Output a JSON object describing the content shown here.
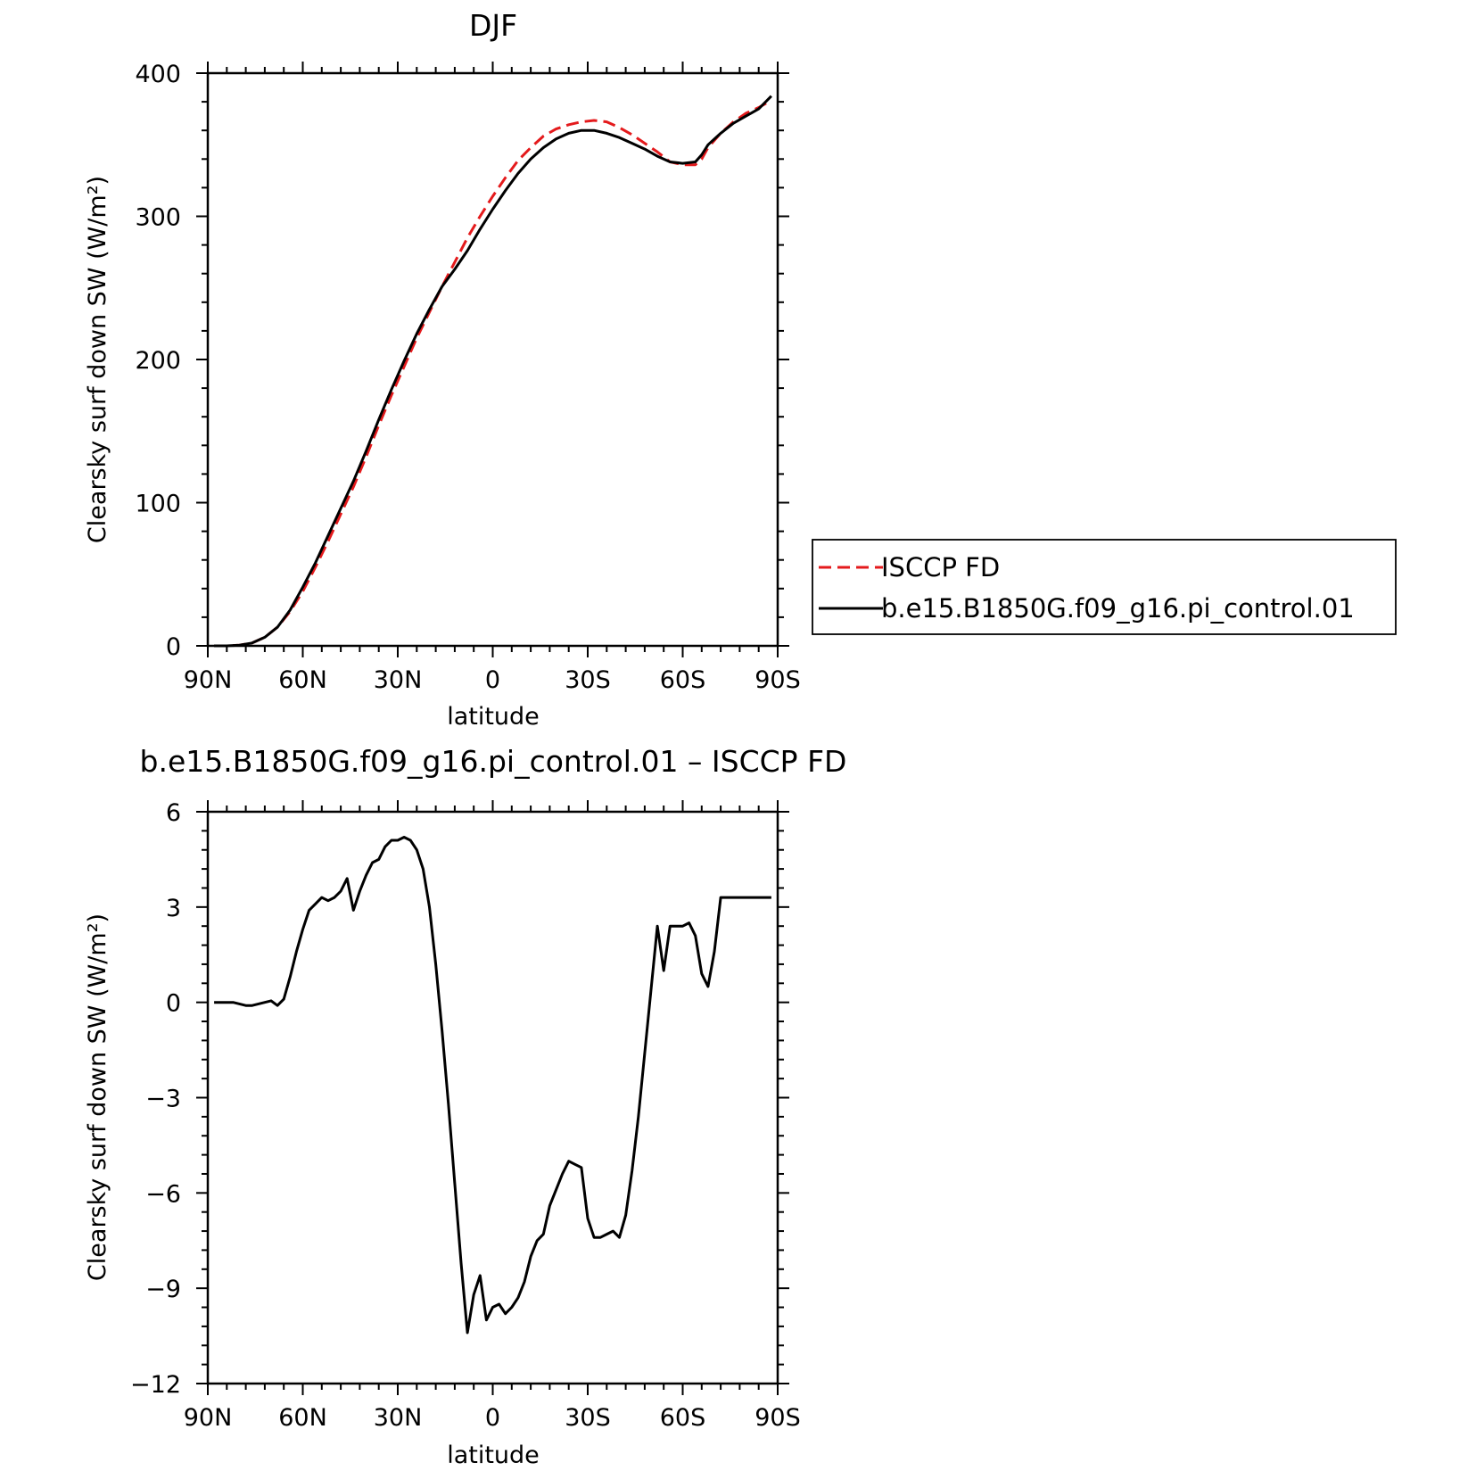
{
  "chart_data": [
    {
      "type": "line",
      "title": "DJF",
      "xlabel": "latitude",
      "ylabel": "Clearsky surf down SW (W/m²)",
      "xlim": [
        -90,
        90
      ],
      "ylim": [
        0,
        400
      ],
      "xticks": [
        -90,
        -60,
        -30,
        0,
        30,
        60,
        90
      ],
      "xtick_labels": [
        "90N",
        "60N",
        "30N",
        "0",
        "30S",
        "60S",
        "90S"
      ],
      "yticks": [
        0,
        100,
        200,
        300,
        400
      ],
      "ytick_labels": [
        "0",
        "100",
        "200",
        "300",
        "400"
      ],
      "legend": {
        "placement": "right",
        "entries": [
          "ISCCP FD",
          "b.e15.B1850G.f09_g16.pi_control.01"
        ]
      },
      "series": [
        {
          "name": "ISCCP FD",
          "color": "#e41a1c",
          "style": "dashed",
          "x": [
            -88,
            -84,
            -80,
            -76,
            -72,
            -68,
            -64,
            -60,
            -56,
            -52,
            -48,
            -44,
            -40,
            -36,
            -32,
            -28,
            -24,
            -20,
            -16,
            -12,
            -8,
            -4,
            0,
            4,
            8,
            12,
            16,
            20,
            24,
            28,
            32,
            36,
            40,
            44,
            48,
            52,
            56,
            60,
            64,
            66,
            68,
            72,
            76,
            80,
            84,
            88
          ],
          "y": [
            0,
            0,
            0.5,
            2,
            6,
            13,
            24,
            38,
            55,
            73,
            92,
            111,
            132,
            154,
            175,
            195,
            215,
            233,
            251,
            268,
            285,
            300,
            314,
            327,
            339,
            348,
            356,
            361,
            364,
            366,
            367,
            366,
            362,
            357,
            351,
            345,
            338,
            336,
            336,
            340,
            348,
            358,
            366,
            372,
            376,
            381
          ]
        },
        {
          "name": "b.e15.B1850G.f09_g16.pi_control.01",
          "color": "#000000",
          "style": "solid",
          "x": [
            -88,
            -84,
            -80,
            -76,
            -72,
            -68,
            -64,
            -60,
            -56,
            -52,
            -48,
            -44,
            -40,
            -36,
            -32,
            -28,
            -24,
            -20,
            -16,
            -12,
            -8,
            -4,
            0,
            4,
            8,
            12,
            16,
            20,
            24,
            28,
            32,
            36,
            40,
            44,
            48,
            52,
            56,
            60,
            64,
            66,
            68,
            72,
            76,
            80,
            84,
            88
          ],
          "y": [
            0,
            0,
            0.5,
            2,
            6,
            13,
            25,
            41,
            58,
            77,
            96,
            115,
            136,
            158,
            179,
            199,
            218,
            235,
            251,
            263,
            276,
            291,
            305,
            318,
            330,
            340,
            348,
            354,
            358,
            360,
            360,
            358,
            355,
            351,
            347,
            342,
            338,
            337,
            338,
            343,
            350,
            358,
            365,
            370,
            375,
            384
          ]
        }
      ]
    },
    {
      "type": "line",
      "title": "b.e15.B1850G.f09_g16.pi_control.01 – ISCCP FD",
      "xlabel": "latitude",
      "ylabel": "Clearsky surf down SW (W/m²)",
      "xlim": [
        -90,
        90
      ],
      "ylim": [
        -12,
        6
      ],
      "xticks": [
        -90,
        -60,
        -30,
        0,
        30,
        60,
        90
      ],
      "xtick_labels": [
        "90N",
        "60N",
        "30N",
        "0",
        "30S",
        "60S",
        "90S"
      ],
      "yticks": [
        -12,
        -9,
        -6,
        -3,
        0,
        3,
        6
      ],
      "ytick_labels": [
        "−12",
        "−9",
        "−6",
        "−3",
        "0",
        "3",
        "6"
      ],
      "series": [
        {
          "color": "#000000",
          "style": "solid",
          "x": [
            -88,
            -86,
            -84,
            -82,
            -80,
            -78,
            -76,
            -74,
            -72,
            -70,
            -68,
            -66,
            -64,
            -62,
            -60,
            -58,
            -56,
            -54,
            -52,
            -50,
            -48,
            -46,
            -44,
            -42,
            -40,
            -38,
            -36,
            -34,
            -32,
            -30,
            -28,
            -26,
            -24,
            -22,
            -20,
            -18,
            -16,
            -14,
            -12,
            -10,
            -8,
            -6,
            -4,
            -2,
            0,
            2,
            4,
            6,
            8,
            10,
            12,
            14,
            16,
            18,
            20,
            22,
            24,
            26,
            28,
            30,
            32,
            34,
            36,
            38,
            40,
            42,
            44,
            46,
            48,
            50,
            52,
            54,
            56,
            58,
            60,
            62,
            64,
            66,
            68,
            70,
            72,
            74,
            76,
            78,
            80,
            82,
            84,
            86,
            88
          ],
          "y": [
            0,
            0,
            0,
            0,
            -0.05,
            -0.1,
            -0.1,
            -0.05,
            0,
            0.05,
            -0.1,
            0.1,
            0.8,
            1.6,
            2.3,
            2.9,
            3.1,
            3.3,
            3.2,
            3.3,
            3.5,
            3.9,
            2.9,
            3.5,
            4.0,
            4.4,
            4.5,
            4.9,
            5.1,
            5.1,
            5.2,
            5.1,
            4.8,
            4.2,
            3.0,
            1.2,
            -0.9,
            -3.2,
            -5.7,
            -8.2,
            -10.4,
            -9.2,
            -8.6,
            -10.0,
            -9.6,
            -9.5,
            -9.8,
            -9.6,
            -9.3,
            -8.8,
            -8.0,
            -7.5,
            -7.3,
            -6.4,
            -5.9,
            -5.4,
            -5.0,
            -5.1,
            -5.2,
            -6.8,
            -7.4,
            -7.4,
            -7.3,
            -7.2,
            -7.4,
            -6.7,
            -5.3,
            -3.6,
            -1.6,
            0.4,
            2.4,
            1.0,
            2.4,
            2.4,
            2.4,
            2.5,
            2.1,
            0.9,
            0.5,
            1.6,
            3.3,
            3.3,
            3.3,
            3.3,
            3.3,
            3.3,
            3.3,
            3.3,
            3.3
          ]
        }
      ]
    }
  ]
}
